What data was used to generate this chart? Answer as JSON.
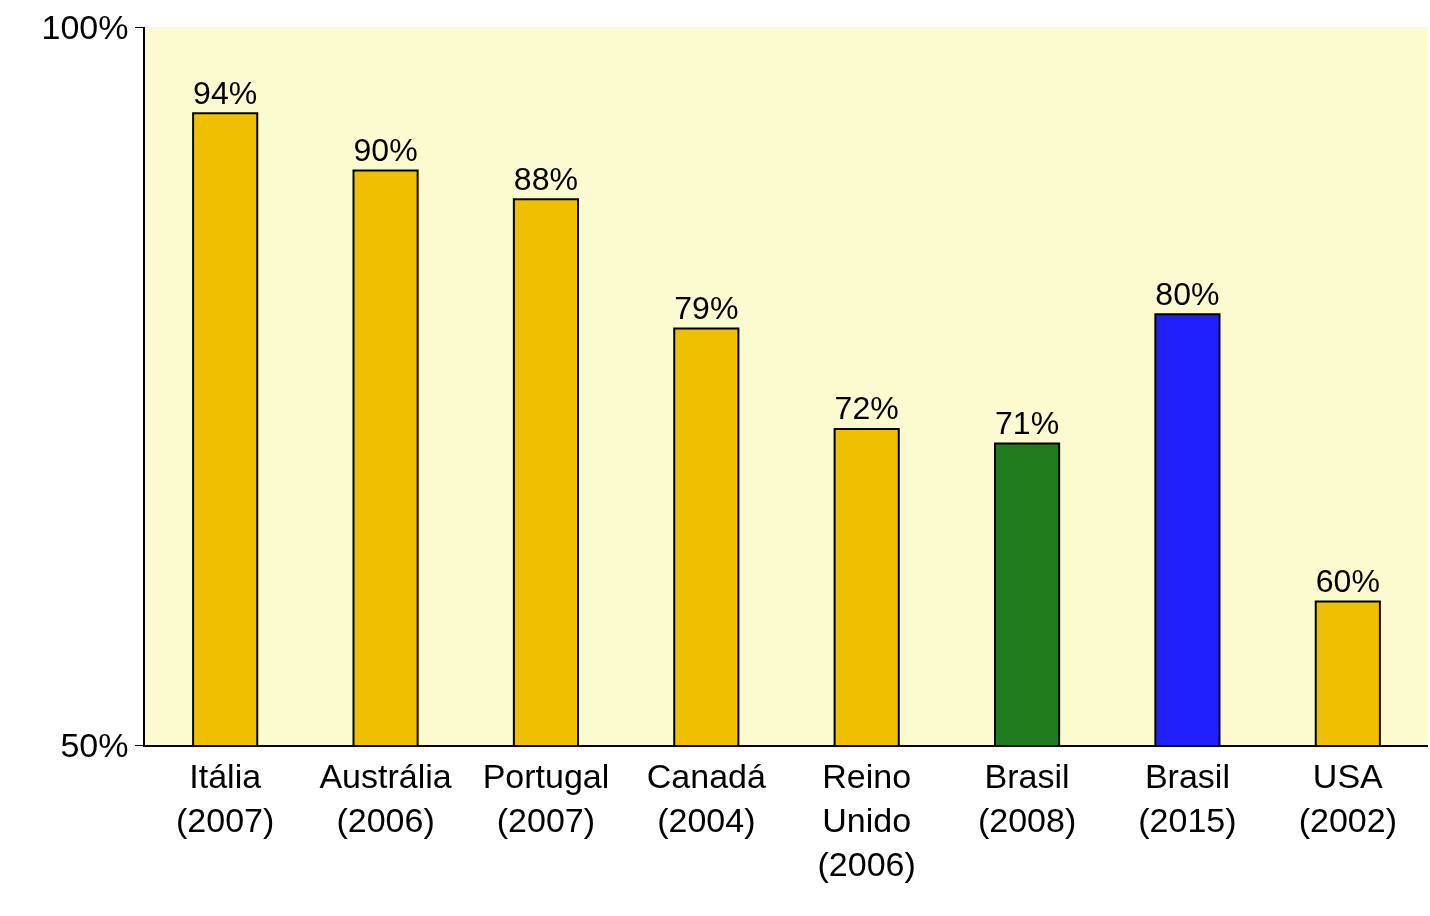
{
  "chart_data": {
    "type": "bar",
    "categories": [
      "Itália (2007)",
      "Austrália (2006)",
      "Portugal (2007)",
      "Canadá (2004)",
      "Reino Unido (2006)",
      "Brasil (2008)",
      "Brasil (2015)",
      "USA (2002)"
    ],
    "values": [
      94,
      90,
      88,
      79,
      72,
      71,
      80,
      60
    ],
    "colors": [
      "#f0c000",
      "#f0c000",
      "#f0c000",
      "#f0c000",
      "#f0c000",
      "#1e7b1e",
      "#2020ff",
      "#f0c000"
    ],
    "value_labels": [
      "94%",
      "90%",
      "88%",
      "79%",
      "72%",
      "71%",
      "80%",
      "60%"
    ],
    "ylim": [
      50,
      100
    ],
    "yticks": [
      {
        "value": 50,
        "label": "50%"
      },
      {
        "value": 100,
        "label": "100%"
      }
    ]
  }
}
